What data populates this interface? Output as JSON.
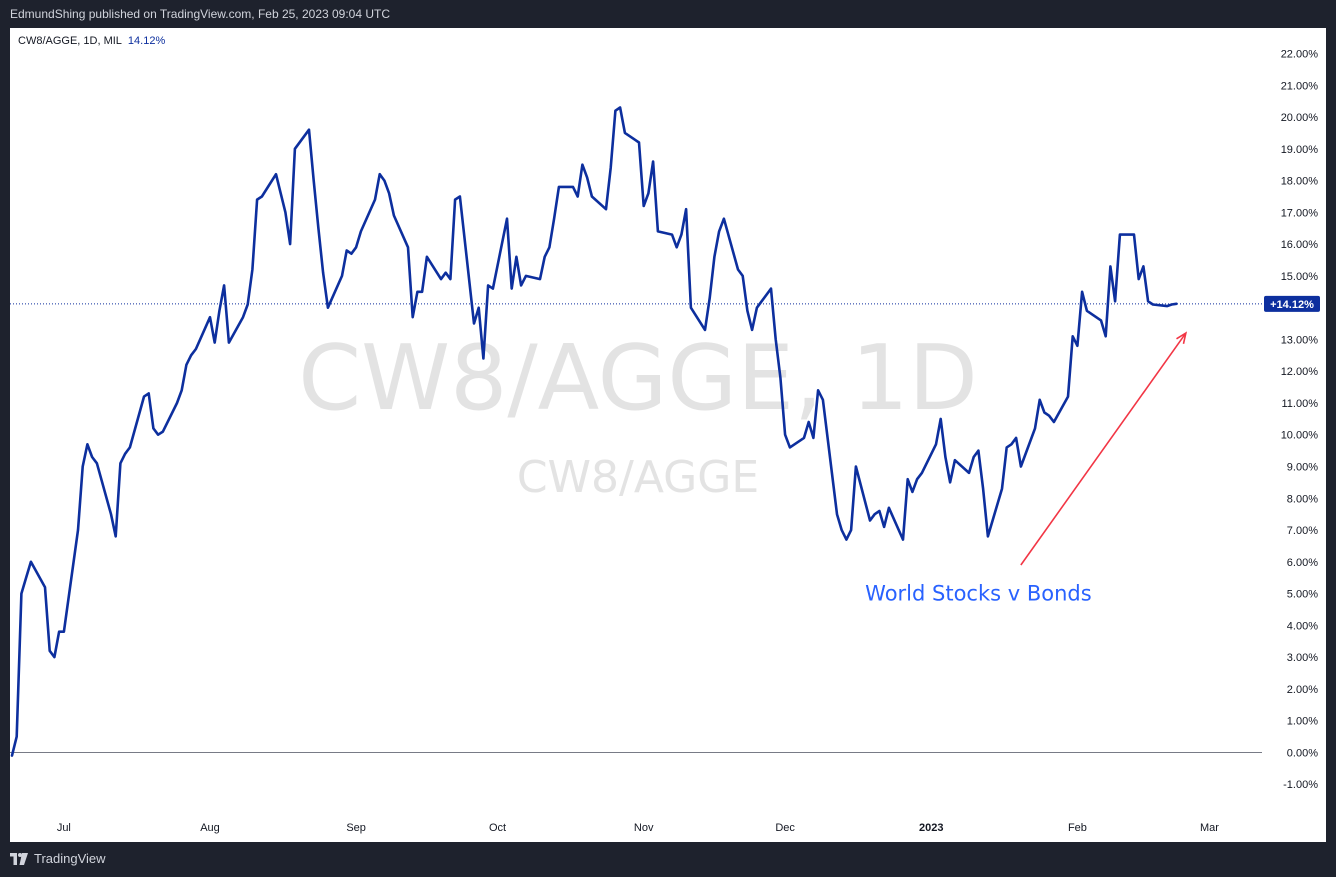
{
  "header": {
    "published": "EdmundShing published on TradingView.com, Feb 25, 2023 09:04 UTC"
  },
  "footer": {
    "brand": "TradingView"
  },
  "legend": {
    "symbol": "CW8/AGGE, 1D, MIL",
    "value": "14.12%"
  },
  "watermark": {
    "main": "CW8/AGGE, 1D",
    "sub": "CW8/AGGE"
  },
  "colors": {
    "line": "#0d2f9e",
    "annotation_text": "#2962ff",
    "arrow": "#f23645",
    "watermark": "#e3e3e3",
    "price_badge": "#0d2f9e",
    "background": "#ffffff",
    "frame": "#1e222d"
  },
  "chart_data": {
    "type": "line",
    "title": "CW8/AGGE, 1D, MIL",
    "ylabel": "",
    "xlabel": "",
    "ylim": [
      -1.5,
      22.7
    ],
    "y_scale": "percent",
    "grid": false,
    "last_value_label": "+14.12%",
    "y_ticks": [
      "22.00%",
      "21.00%",
      "20.00%",
      "19.00%",
      "18.00%",
      "17.00%",
      "16.00%",
      "15.00%",
      "14.00%",
      "13.00%",
      "12.00%",
      "11.00%",
      "10.00%",
      "9.00%",
      "8.00%",
      "7.00%",
      "6.00%",
      "5.00%",
      "4.00%",
      "3.00%",
      "2.00%",
      "1.00%",
      "0.00%",
      "-1.00%"
    ],
    "x_ticks": [
      {
        "date": "2022-07-01",
        "label": "Jul",
        "bold": false
      },
      {
        "date": "2022-08-01",
        "label": "Aug",
        "bold": false
      },
      {
        "date": "2022-09-01",
        "label": "Sep",
        "bold": false
      },
      {
        "date": "2022-10-01",
        "label": "Oct",
        "bold": false
      },
      {
        "date": "2022-11-01",
        "label": "Nov",
        "bold": false
      },
      {
        "date": "2022-12-01",
        "label": "Dec",
        "bold": false
      },
      {
        "date": "2023-01-01",
        "label": "2023",
        "bold": true
      },
      {
        "date": "2023-02-01",
        "label": "Feb",
        "bold": false
      },
      {
        "date": "2023-03-01",
        "label": "Mar",
        "bold": false
      }
    ],
    "annotation": {
      "text": "World Stocks v Bonds",
      "date": "2023-01-11",
      "value": 5.0
    },
    "arrow": {
      "from": {
        "date": "2023-01-20",
        "value": 5.9
      },
      "to": {
        "date": "2023-02-24",
        "value": 13.2
      }
    },
    "series": [
      {
        "points": [
          [
            "2022-06-20",
            -0.1
          ],
          [
            "2022-06-21",
            0.5
          ],
          [
            "2022-06-22",
            5.0
          ],
          [
            "2022-06-23",
            5.5
          ],
          [
            "2022-06-24",
            6.0
          ],
          [
            "2022-06-27",
            5.2
          ],
          [
            "2022-06-28",
            3.2
          ],
          [
            "2022-06-29",
            3.0
          ],
          [
            "2022-06-30",
            3.8
          ],
          [
            "2022-07-01",
            3.8
          ],
          [
            "2022-07-04",
            7.0
          ],
          [
            "2022-07-05",
            9.0
          ],
          [
            "2022-07-06",
            9.7
          ],
          [
            "2022-07-07",
            9.3
          ],
          [
            "2022-07-08",
            9.1
          ],
          [
            "2022-07-11",
            7.5
          ],
          [
            "2022-07-12",
            6.8
          ],
          [
            "2022-07-13",
            9.1
          ],
          [
            "2022-07-14",
            9.4
          ],
          [
            "2022-07-15",
            9.6
          ],
          [
            "2022-07-18",
            11.2
          ],
          [
            "2022-07-19",
            11.3
          ],
          [
            "2022-07-20",
            10.2
          ],
          [
            "2022-07-21",
            10.0
          ],
          [
            "2022-07-22",
            10.1
          ],
          [
            "2022-07-25",
            11.0
          ],
          [
            "2022-07-26",
            11.4
          ],
          [
            "2022-07-27",
            12.2
          ],
          [
            "2022-07-28",
            12.5
          ],
          [
            "2022-07-29",
            12.7
          ],
          [
            "2022-08-01",
            13.7
          ],
          [
            "2022-08-02",
            12.9
          ],
          [
            "2022-08-03",
            13.9
          ],
          [
            "2022-08-04",
            14.7
          ],
          [
            "2022-08-05",
            12.9
          ],
          [
            "2022-08-08",
            13.7
          ],
          [
            "2022-08-09",
            14.1
          ],
          [
            "2022-08-10",
            15.2
          ],
          [
            "2022-08-11",
            17.4
          ],
          [
            "2022-08-12",
            17.5
          ],
          [
            "2022-08-15",
            18.2
          ],
          [
            "2022-08-16",
            17.6
          ],
          [
            "2022-08-17",
            17.0
          ],
          [
            "2022-08-18",
            16.0
          ],
          [
            "2022-08-19",
            19.0
          ],
          [
            "2022-08-22",
            19.6
          ],
          [
            "2022-08-23",
            18.0
          ],
          [
            "2022-08-24",
            16.5
          ],
          [
            "2022-08-25",
            15.1
          ],
          [
            "2022-08-26",
            14.0
          ],
          [
            "2022-08-29",
            15.0
          ],
          [
            "2022-08-30",
            15.8
          ],
          [
            "2022-08-31",
            15.7
          ],
          [
            "2022-09-01",
            15.9
          ],
          [
            "2022-09-02",
            16.4
          ],
          [
            "2022-09-05",
            17.4
          ],
          [
            "2022-09-06",
            18.2
          ],
          [
            "2022-09-07",
            18.0
          ],
          [
            "2022-09-08",
            17.6
          ],
          [
            "2022-09-09",
            16.9
          ],
          [
            "2022-09-12",
            15.9
          ],
          [
            "2022-09-13",
            13.7
          ],
          [
            "2022-09-14",
            14.5
          ],
          [
            "2022-09-15",
            14.5
          ],
          [
            "2022-09-16",
            15.6
          ],
          [
            "2022-09-19",
            14.9
          ],
          [
            "2022-09-20",
            15.1
          ],
          [
            "2022-09-21",
            14.9
          ],
          [
            "2022-09-22",
            17.4
          ],
          [
            "2022-09-23",
            17.5
          ],
          [
            "2022-09-26",
            13.5
          ],
          [
            "2022-09-27",
            14.0
          ],
          [
            "2022-09-28",
            12.4
          ],
          [
            "2022-09-29",
            14.7
          ],
          [
            "2022-09-30",
            14.6
          ],
          [
            "2022-10-03",
            16.8
          ],
          [
            "2022-10-04",
            14.6
          ],
          [
            "2022-10-05",
            15.6
          ],
          [
            "2022-10-06",
            14.7
          ],
          [
            "2022-10-07",
            15.0
          ],
          [
            "2022-10-10",
            14.9
          ],
          [
            "2022-10-11",
            15.6
          ],
          [
            "2022-10-12",
            15.9
          ],
          [
            "2022-10-13",
            16.8
          ],
          [
            "2022-10-14",
            17.8
          ],
          [
            "2022-10-17",
            17.8
          ],
          [
            "2022-10-18",
            17.5
          ],
          [
            "2022-10-19",
            18.5
          ],
          [
            "2022-10-20",
            18.1
          ],
          [
            "2022-10-21",
            17.5
          ],
          [
            "2022-10-24",
            17.1
          ],
          [
            "2022-10-25",
            18.4
          ],
          [
            "2022-10-26",
            20.2
          ],
          [
            "2022-10-27",
            20.3
          ],
          [
            "2022-10-28",
            19.5
          ],
          [
            "2022-10-31",
            19.2
          ],
          [
            "2022-11-01",
            17.2
          ],
          [
            "2022-11-02",
            17.6
          ],
          [
            "2022-11-03",
            18.6
          ],
          [
            "2022-11-04",
            16.4
          ],
          [
            "2022-11-07",
            16.3
          ],
          [
            "2022-11-08",
            15.9
          ],
          [
            "2022-11-09",
            16.3
          ],
          [
            "2022-11-10",
            17.1
          ],
          [
            "2022-11-11",
            14.0
          ],
          [
            "2022-11-14",
            13.3
          ],
          [
            "2022-11-15",
            14.3
          ],
          [
            "2022-11-16",
            15.6
          ],
          [
            "2022-11-17",
            16.4
          ],
          [
            "2022-11-18",
            16.8
          ],
          [
            "2022-11-21",
            15.2
          ],
          [
            "2022-11-22",
            15.0
          ],
          [
            "2022-11-23",
            13.9
          ],
          [
            "2022-11-24",
            13.3
          ],
          [
            "2022-11-25",
            14.0
          ],
          [
            "2022-11-28",
            14.6
          ],
          [
            "2022-11-29",
            13.0
          ],
          [
            "2022-11-30",
            11.8
          ],
          [
            "2022-12-01",
            10.0
          ],
          [
            "2022-12-02",
            9.6
          ],
          [
            "2022-12-05",
            9.9
          ],
          [
            "2022-12-06",
            10.4
          ],
          [
            "2022-12-07",
            9.9
          ],
          [
            "2022-12-08",
            11.4
          ],
          [
            "2022-12-09",
            11.1
          ],
          [
            "2022-12-12",
            7.5
          ],
          [
            "2022-12-13",
            7.0
          ],
          [
            "2022-12-14",
            6.7
          ],
          [
            "2022-12-15",
            7.0
          ],
          [
            "2022-12-16",
            9.0
          ],
          [
            "2022-12-19",
            7.3
          ],
          [
            "2022-12-20",
            7.5
          ],
          [
            "2022-12-21",
            7.6
          ],
          [
            "2022-12-22",
            7.1
          ],
          [
            "2022-12-23",
            7.7
          ],
          [
            "2022-12-26",
            6.7
          ],
          [
            "2022-12-27",
            8.6
          ],
          [
            "2022-12-28",
            8.2
          ],
          [
            "2022-12-29",
            8.6
          ],
          [
            "2022-12-30",
            8.8
          ],
          [
            "2023-01-02",
            9.7
          ],
          [
            "2023-01-03",
            10.5
          ],
          [
            "2023-01-04",
            9.3
          ],
          [
            "2023-01-05",
            8.5
          ],
          [
            "2023-01-06",
            9.2
          ],
          [
            "2023-01-09",
            8.8
          ],
          [
            "2023-01-10",
            9.3
          ],
          [
            "2023-01-11",
            9.5
          ],
          [
            "2023-01-12",
            8.3
          ],
          [
            "2023-01-13",
            6.8
          ],
          [
            "2023-01-16",
            8.3
          ],
          [
            "2023-01-17",
            9.6
          ],
          [
            "2023-01-18",
            9.7
          ],
          [
            "2023-01-19",
            9.9
          ],
          [
            "2023-01-20",
            9.0
          ],
          [
            "2023-01-23",
            10.2
          ],
          [
            "2023-01-24",
            11.1
          ],
          [
            "2023-01-25",
            10.7
          ],
          [
            "2023-01-26",
            10.6
          ],
          [
            "2023-01-27",
            10.4
          ],
          [
            "2023-01-30",
            11.2
          ],
          [
            "2023-01-31",
            13.1
          ],
          [
            "2023-02-01",
            12.8
          ],
          [
            "2023-02-02",
            14.5
          ],
          [
            "2023-02-03",
            13.9
          ],
          [
            "2023-02-06",
            13.6
          ],
          [
            "2023-02-07",
            13.1
          ],
          [
            "2023-02-08",
            15.3
          ],
          [
            "2023-02-09",
            14.2
          ],
          [
            "2023-02-10",
            16.3
          ],
          [
            "2023-02-13",
            16.3
          ],
          [
            "2023-02-14",
            14.9
          ],
          [
            "2023-02-15",
            15.3
          ],
          [
            "2023-02-16",
            14.2
          ],
          [
            "2023-02-17",
            14.1
          ],
          [
            "2023-02-20",
            14.05
          ],
          [
            "2023-02-21",
            14.1
          ],
          [
            "2023-02-22",
            14.12
          ]
        ]
      }
    ]
  }
}
